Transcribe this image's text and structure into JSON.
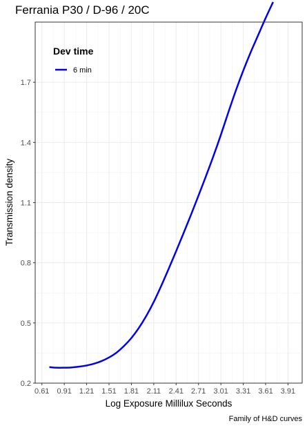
{
  "chart_data": {
    "type": "line",
    "title": "Ferrania P30 / D-96 / 20C",
    "xlabel": "Log Exposure Millilux Seconds",
    "ylabel": "Transmission density",
    "caption": "Family of H&D curves",
    "xlim": [
      0.52,
      4.1
    ],
    "ylim": [
      0.2,
      2.0
    ],
    "xticks": [
      0.61,
      0.91,
      1.21,
      1.51,
      1.81,
      2.11,
      2.41,
      2.71,
      3.01,
      3.31,
      3.61,
      3.91
    ],
    "xtick_labels": [
      "0.61",
      "0.91",
      "1.21",
      "1.51",
      "1.81",
      "2.11",
      "2.41",
      "2.71",
      "3.01",
      "3.31",
      "3.61",
      "3.91"
    ],
    "yticks": [
      0.2,
      0.5,
      0.8,
      1.1,
      1.4,
      1.7
    ],
    "ytick_labels": [
      "0.2",
      "0.5",
      "0.8",
      "1.1",
      "1.4",
      "1.7"
    ],
    "grid": true,
    "legend": {
      "title": "Dev time",
      "position": "top-left"
    },
    "series": [
      {
        "name": "6 min",
        "color": "#0000ee",
        "x": [
          0.71,
          0.8,
          0.91,
          1.0,
          1.11,
          1.21,
          1.31,
          1.41,
          1.51,
          1.61,
          1.71,
          1.81,
          1.91,
          2.01,
          2.11,
          2.21,
          2.31,
          2.41,
          2.51,
          2.61,
          2.71,
          2.81,
          2.91,
          3.01,
          3.11,
          3.21,
          3.31,
          3.41,
          3.51,
          3.61,
          3.71
        ],
        "y": [
          0.28,
          0.277,
          0.277,
          0.278,
          0.282,
          0.288,
          0.297,
          0.31,
          0.328,
          0.352,
          0.385,
          0.425,
          0.475,
          0.535,
          0.605,
          0.685,
          0.77,
          0.858,
          0.948,
          1.04,
          1.135,
          1.232,
          1.332,
          1.438,
          1.55,
          1.658,
          1.758,
          1.85,
          1.935,
          2.02,
          2.1
        ]
      }
    ]
  }
}
